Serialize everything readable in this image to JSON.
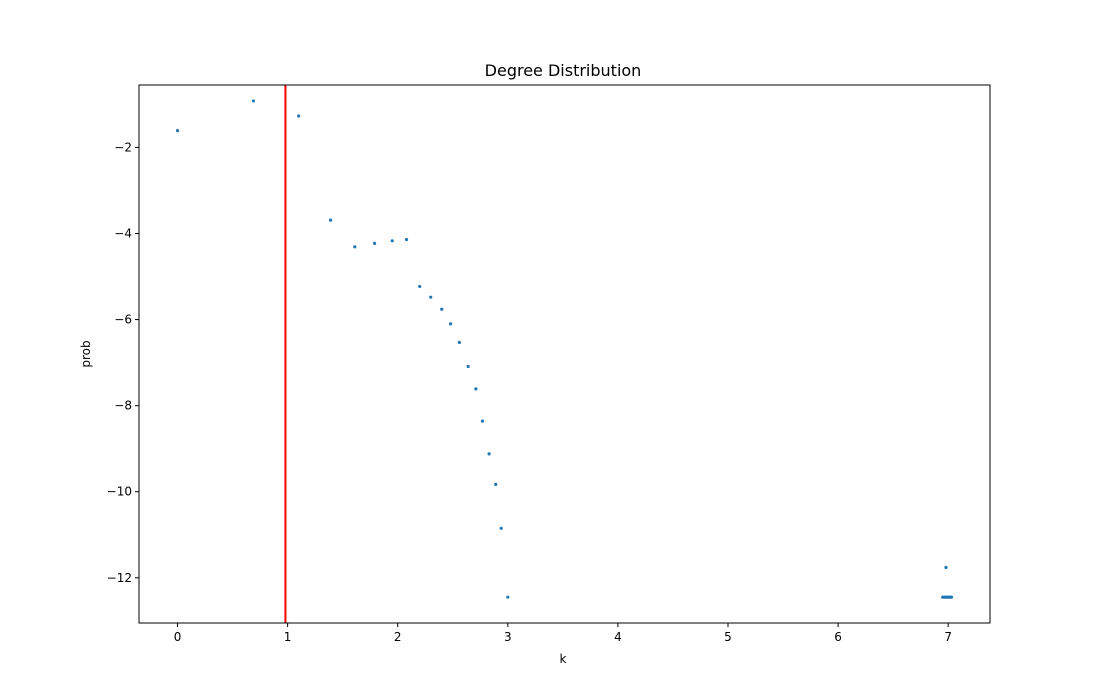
{
  "chart_data": {
    "type": "scatter",
    "title": "Degree Distribution",
    "xlabel": "k",
    "ylabel": "prob",
    "xlim": [
      -0.35,
      7.38
    ],
    "ylim": [
      -13.05,
      -0.55
    ],
    "x_ticks": [
      0,
      1,
      2,
      3,
      4,
      5,
      6,
      7
    ],
    "y_ticks": [
      -12,
      -10,
      -8,
      -6,
      -4,
      -2
    ],
    "grid": false,
    "point_color": "#1f77b4",
    "vline": {
      "x": 0.98,
      "color": "#ff0000"
    },
    "series": [
      {
        "values": [
          {
            "x": 0.0,
            "y": -1.61
          },
          {
            "x": 0.69,
            "y": -0.92
          },
          {
            "x": 1.1,
            "y": -1.27
          },
          {
            "x": 1.39,
            "y": -3.69
          },
          {
            "x": 1.61,
            "y": -4.31
          },
          {
            "x": 1.79,
            "y": -4.23
          },
          {
            "x": 1.95,
            "y": -4.17
          },
          {
            "x": 2.08,
            "y": -4.14
          },
          {
            "x": 2.2,
            "y": -5.23
          },
          {
            "x": 2.3,
            "y": -5.48
          },
          {
            "x": 2.4,
            "y": -5.76
          },
          {
            "x": 2.48,
            "y": -6.1
          },
          {
            "x": 2.56,
            "y": -6.53
          },
          {
            "x": 2.64,
            "y": -7.09
          },
          {
            "x": 2.71,
            "y": -7.61
          },
          {
            "x": 2.77,
            "y": -8.36
          },
          {
            "x": 2.83,
            "y": -9.12
          },
          {
            "x": 2.89,
            "y": -9.83
          },
          {
            "x": 2.94,
            "y": -10.85
          },
          {
            "x": 3.0,
            "y": -12.45
          },
          {
            "x": 6.98,
            "y": -11.76
          },
          {
            "x": 6.95,
            "y": -12.45
          },
          {
            "x": 6.96,
            "y": -12.45
          },
          {
            "x": 6.97,
            "y": -12.45
          },
          {
            "x": 6.98,
            "y": -12.45
          },
          {
            "x": 6.99,
            "y": -12.45
          },
          {
            "x": 7.0,
            "y": -12.45
          },
          {
            "x": 7.01,
            "y": -12.45
          },
          {
            "x": 7.02,
            "y": -12.45
          },
          {
            "x": 7.03,
            "y": -12.45
          }
        ]
      }
    ]
  }
}
